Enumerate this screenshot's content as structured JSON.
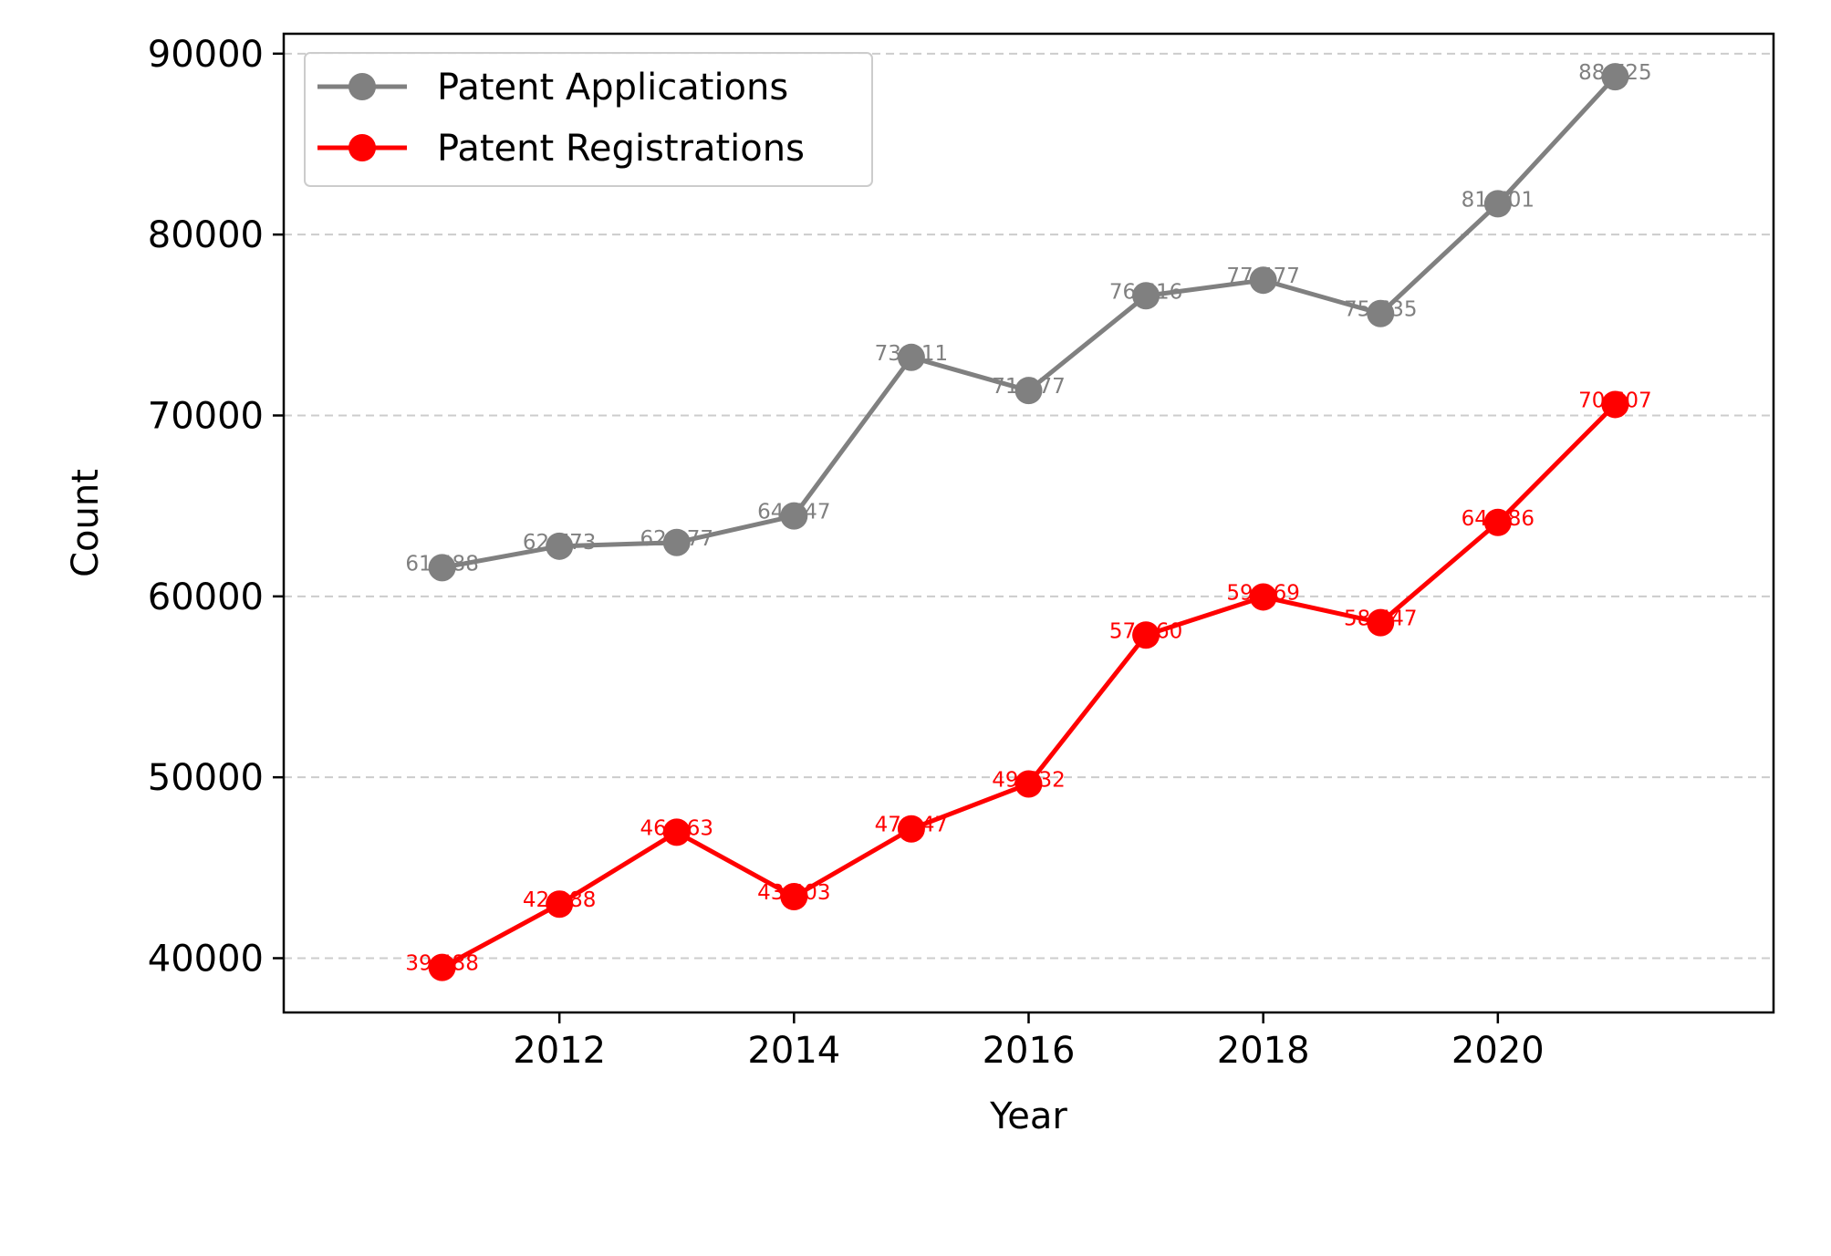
{
  "chart_data": {
    "type": "line",
    "title": "",
    "xlabel": "Year",
    "ylabel": "Count",
    "x": [
      2011,
      2012,
      2013,
      2014,
      2015,
      2016,
      2017,
      2018,
      2019,
      2020,
      2021
    ],
    "xticks": [
      2012,
      2014,
      2016,
      2018,
      2020
    ],
    "xlim": [
      2009.65,
      2022.35
    ],
    "yticks": [
      40000,
      50000,
      60000,
      70000,
      80000,
      90000
    ],
    "ylim": [
      37000,
      91100
    ],
    "grid": "y-dashed",
    "legend": "upper-left",
    "series": [
      {
        "name": "Patent Applications",
        "color": "#808080",
        "values": [
          61588,
          62773,
          62977,
          64447,
          73211,
          71377,
          76616,
          77477,
          75635,
          81701,
          88725
        ],
        "labels": [
          "61,588",
          "62,773",
          "62,977",
          "64,447",
          "73,211",
          "71,377",
          "76,616",
          "77,477",
          "75,635",
          "81,701",
          "88,725"
        ]
      },
      {
        "name": "Patent Registrations",
        "color": "#ff0000",
        "values": [
          39488,
          42988,
          46963,
          43403,
          47147,
          49632,
          57860,
          59969,
          58547,
          64086,
          70607
        ],
        "labels": [
          "39,488",
          "42,988",
          "46,963",
          "43,403",
          "47,147",
          "49,632",
          "57,860",
          "59,969",
          "58,547",
          "64,086",
          "70,607"
        ]
      }
    ]
  }
}
